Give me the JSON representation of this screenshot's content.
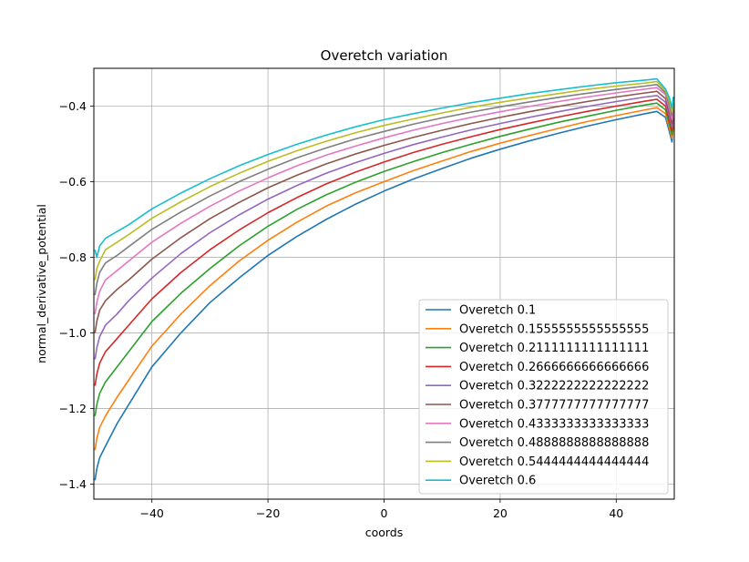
{
  "chart_data": {
    "type": "line",
    "title": "Overetch variation",
    "xlabel": "coords",
    "ylabel": "normal_derivative_potential",
    "xlim": [
      -50,
      50
    ],
    "ylim": [
      -1.44,
      -0.3
    ],
    "xticks": [
      -40,
      -20,
      0,
      20,
      40
    ],
    "yticks": [
      -1.4,
      -1.2,
      -1.0,
      -0.8,
      -0.6,
      -0.4
    ],
    "xtick_labels": [
      "−40",
      "−20",
      "0",
      "20",
      "40"
    ],
    "ytick_labels": [
      "−1.4",
      "−1.2",
      "−1.0",
      "−0.8",
      "−0.6",
      "−0.4"
    ],
    "grid": true,
    "legend_position": "lower right",
    "x": [
      -48,
      -46,
      -44,
      -40,
      -35,
      -30,
      -25,
      -20,
      -15,
      -10,
      -5,
      0,
      5,
      10,
      15,
      20,
      25,
      30,
      35,
      40,
      45,
      47
    ],
    "series": [
      {
        "name": "Overetch 0.1",
        "color": "#1f77b4",
        "values": [
          -1.3,
          -1.24,
          -1.19,
          -1.09,
          -1.0,
          -0.92,
          -0.855,
          -0.795,
          -0.745,
          -0.7,
          -0.66,
          -0.625,
          -0.593,
          -0.565,
          -0.538,
          -0.514,
          -0.492,
          -0.472,
          -0.453,
          -0.436,
          -0.42,
          -0.414
        ],
        "start": [
          [
            -49.8,
            -1.39
          ],
          [
            -49.5,
            -1.36
          ],
          [
            -49.0,
            -1.33
          ]
        ],
        "end": [
          [
            48.5,
            -0.43
          ],
          [
            49.2,
            -0.47
          ],
          [
            49.6,
            -0.495
          ],
          [
            49.85,
            -0.45
          ]
        ]
      },
      {
        "name": "Overetch 0.1555555555555555",
        "color": "#ff7f0e",
        "values": [
          -1.22,
          -1.17,
          -1.125,
          -1.035,
          -0.95,
          -0.875,
          -0.81,
          -0.755,
          -0.707,
          -0.665,
          -0.63,
          -0.6,
          -0.571,
          -0.545,
          -0.52,
          -0.498,
          -0.478,
          -0.459,
          -0.441,
          -0.425,
          -0.41,
          -0.404
        ],
        "start": [
          [
            -49.8,
            -1.31
          ],
          [
            -49.5,
            -1.28
          ],
          [
            -49.0,
            -1.25
          ]
        ],
        "end": [
          [
            48.5,
            -0.42
          ],
          [
            49.2,
            -0.46
          ],
          [
            49.6,
            -0.485
          ],
          [
            49.85,
            -0.44
          ]
        ]
      },
      {
        "name": "Overetch 0.2111111111111111",
        "color": "#2ca02c",
        "values": [
          -1.13,
          -1.09,
          -1.05,
          -0.97,
          -0.895,
          -0.83,
          -0.77,
          -0.718,
          -0.673,
          -0.635,
          -0.602,
          -0.573,
          -0.547,
          -0.523,
          -0.501,
          -0.48,
          -0.461,
          -0.443,
          -0.427,
          -0.411,
          -0.397,
          -0.392
        ],
        "start": [
          [
            -49.8,
            -1.22
          ],
          [
            -49.5,
            -1.19
          ],
          [
            -49.0,
            -1.16
          ]
        ],
        "end": [
          [
            48.5,
            -0.41
          ],
          [
            49.2,
            -0.45
          ],
          [
            49.6,
            -0.475
          ],
          [
            49.85,
            -0.43
          ]
        ]
      },
      {
        "name": "Overetch 0.2666666666666666",
        "color": "#d62728",
        "values": [
          -1.05,
          -1.015,
          -0.98,
          -0.91,
          -0.84,
          -0.78,
          -0.728,
          -0.682,
          -0.642,
          -0.606,
          -0.575,
          -0.548,
          -0.523,
          -0.501,
          -0.481,
          -0.462,
          -0.445,
          -0.429,
          -0.414,
          -0.4,
          -0.387,
          -0.382
        ],
        "start": [
          [
            -49.8,
            -1.14
          ],
          [
            -49.5,
            -1.11
          ],
          [
            -49.0,
            -1.08
          ]
        ],
        "end": [
          [
            48.5,
            -0.4
          ],
          [
            49.2,
            -0.44
          ],
          [
            49.6,
            -0.465
          ],
          [
            49.85,
            -0.42
          ]
        ]
      },
      {
        "name": "Overetch 0.3222222222222222",
        "color": "#9467bd",
        "values": [
          -0.98,
          -0.95,
          -0.915,
          -0.855,
          -0.79,
          -0.735,
          -0.688,
          -0.646,
          -0.61,
          -0.578,
          -0.55,
          -0.525,
          -0.502,
          -0.482,
          -0.463,
          -0.446,
          -0.43,
          -0.415,
          -0.401,
          -0.388,
          -0.376,
          -0.372
        ],
        "start": [
          [
            -49.8,
            -1.07
          ],
          [
            -49.5,
            -1.04
          ],
          [
            -49.0,
            -1.01
          ]
        ],
        "end": [
          [
            48.5,
            -0.39
          ],
          [
            49.2,
            -0.43
          ],
          [
            49.6,
            -0.455
          ],
          [
            49.85,
            -0.41
          ]
        ]
      },
      {
        "name": "Overetch 0.3777777777777777",
        "color": "#8c564b",
        "values": [
          -0.915,
          -0.885,
          -0.86,
          -0.805,
          -0.748,
          -0.698,
          -0.655,
          -0.616,
          -0.583,
          -0.553,
          -0.527,
          -0.504,
          -0.483,
          -0.464,
          -0.446,
          -0.43,
          -0.415,
          -0.401,
          -0.388,
          -0.376,
          -0.365,
          -0.361
        ],
        "start": [
          [
            -49.8,
            -1.0
          ],
          [
            -49.5,
            -0.97
          ],
          [
            -49.0,
            -0.94
          ]
        ],
        "end": [
          [
            48.5,
            -0.38
          ],
          [
            49.2,
            -0.42
          ],
          [
            49.6,
            -0.445
          ],
          [
            49.85,
            -0.4
          ]
        ]
      },
      {
        "name": "Overetch 0.4333333333333333",
        "color": "#e377c2",
        "values": [
          -0.86,
          -0.835,
          -0.81,
          -0.76,
          -0.71,
          -0.665,
          -0.625,
          -0.59,
          -0.558,
          -0.53,
          -0.506,
          -0.484,
          -0.464,
          -0.446,
          -0.43,
          -0.415,
          -0.401,
          -0.388,
          -0.376,
          -0.365,
          -0.355,
          -0.351
        ],
        "start": [
          [
            -49.8,
            -0.95
          ],
          [
            -49.5,
            -0.92
          ],
          [
            -49.0,
            -0.89
          ]
        ],
        "end": [
          [
            48.5,
            -0.37
          ],
          [
            49.2,
            -0.41
          ],
          [
            49.6,
            -0.435
          ],
          [
            49.85,
            -0.39
          ]
        ]
      },
      {
        "name": "Overetch 0.4888888888888888",
        "color": "#7f7f7f",
        "values": [
          -0.815,
          -0.795,
          -0.772,
          -0.726,
          -0.68,
          -0.638,
          -0.6,
          -0.567,
          -0.537,
          -0.511,
          -0.487,
          -0.467,
          -0.448,
          -0.431,
          -0.416,
          -0.402,
          -0.389,
          -0.377,
          -0.366,
          -0.356,
          -0.347,
          -0.343
        ],
        "start": [
          [
            -49.8,
            -0.9
          ],
          [
            -49.5,
            -0.87
          ],
          [
            -49.0,
            -0.84
          ]
        ],
        "end": [
          [
            48.5,
            -0.365
          ],
          [
            49.2,
            -0.4
          ],
          [
            49.6,
            -0.425
          ],
          [
            49.85,
            -0.385
          ]
        ]
      },
      {
        "name": "Overetch 0.5444444444444444",
        "color": "#bcbd22",
        "values": [
          -0.78,
          -0.76,
          -0.74,
          -0.697,
          -0.653,
          -0.613,
          -0.578,
          -0.546,
          -0.518,
          -0.493,
          -0.471,
          -0.451,
          -0.434,
          -0.418,
          -0.403,
          -0.39,
          -0.378,
          -0.367,
          -0.356,
          -0.347,
          -0.339,
          -0.335
        ],
        "start": [
          [
            -49.8,
            -0.86
          ],
          [
            -49.5,
            -0.83
          ],
          [
            -49.0,
            -0.81
          ]
        ],
        "end": [
          [
            48.5,
            -0.36
          ],
          [
            49.2,
            -0.39
          ],
          [
            49.6,
            -0.415
          ],
          [
            49.85,
            -0.38
          ]
        ]
      },
      {
        "name": "Overetch 0.6",
        "color": "#17becf",
        "values": [
          -0.75,
          -0.732,
          -0.714,
          -0.672,
          -0.63,
          -0.592,
          -0.558,
          -0.528,
          -0.501,
          -0.477,
          -0.455,
          -0.436,
          -0.42,
          -0.405,
          -0.391,
          -0.379,
          -0.367,
          -0.357,
          -0.347,
          -0.338,
          -0.331,
          -0.328
        ],
        "start": [
          [
            -49.8,
            -0.78
          ],
          [
            -49.5,
            -0.8
          ],
          [
            -49.0,
            -0.77
          ]
        ],
        "end": [
          [
            48.5,
            -0.355
          ],
          [
            49.2,
            -0.38
          ],
          [
            49.6,
            -0.405
          ],
          [
            49.85,
            -0.375
          ]
        ]
      }
    ]
  }
}
